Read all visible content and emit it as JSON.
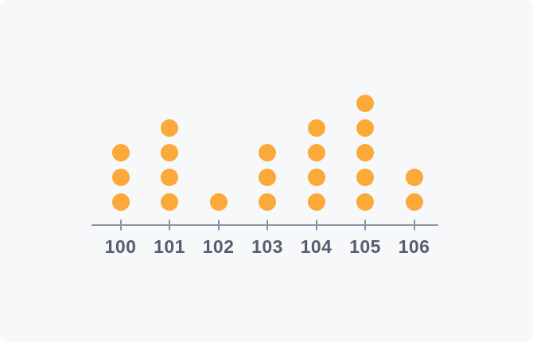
{
  "chart_data": {
    "type": "dot-plot",
    "title": "",
    "xlabel": "",
    "ylabel": "",
    "categories": [
      "100",
      "101",
      "102",
      "103",
      "104",
      "105",
      "106"
    ],
    "values": [
      3,
      4,
      1,
      3,
      4,
      5,
      2
    ],
    "x_range": [
      100,
      106
    ],
    "max_count": 5,
    "grid": false,
    "legend": false,
    "colors": {
      "dot": "#FBA939",
      "axis": "#8D93A0",
      "tick_label": "#575D70",
      "background": "#F7F8FA"
    }
  }
}
